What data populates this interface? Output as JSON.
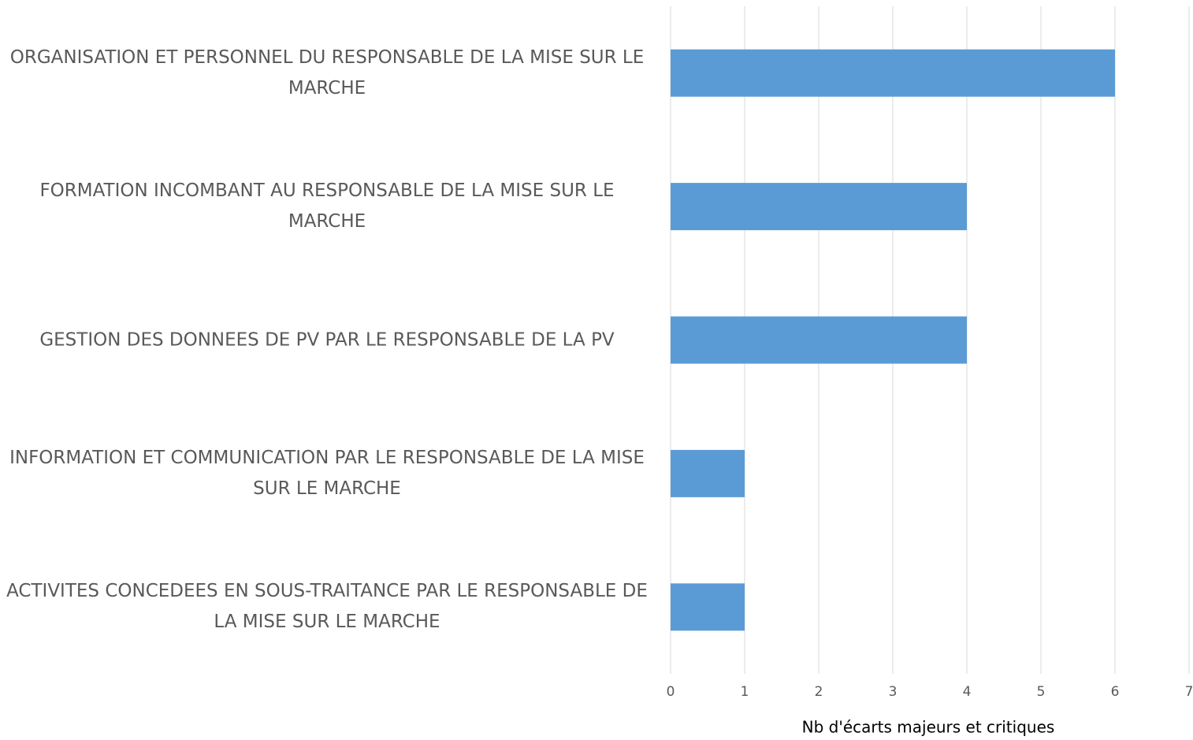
{
  "chart_data": {
    "type": "barh",
    "categories": [
      "ORGANISATION ET PERSONNEL DU RESPONSABLE DE LA MISE SUR LE MARCHE",
      "FORMATION INCOMBANT AU RESPONSABLE DE LA MISE SUR LE MARCHE",
      "GESTION DES DONNEES DE PV PAR LE RESPONSABLE DE LA PV",
      "INFORMATION ET COMMUNICATION PAR LE RESPONSABLE DE LA MISE SUR LE MARCHE",
      "ACTIVITES CONCEDEES EN SOUS-TRAITANCE PAR LE RESPONSABLE DE LA MISE SUR LE MARCHE"
    ],
    "values": [
      6,
      4,
      4,
      1,
      1
    ],
    "color": "#5b9bd5",
    "x_label": "Nb d'écarts majeurs et critiques",
    "xlim": [
      0,
      7
    ],
    "xticks": [
      0,
      1,
      2,
      3,
      4,
      5,
      6,
      7
    ],
    "grid": true
  }
}
